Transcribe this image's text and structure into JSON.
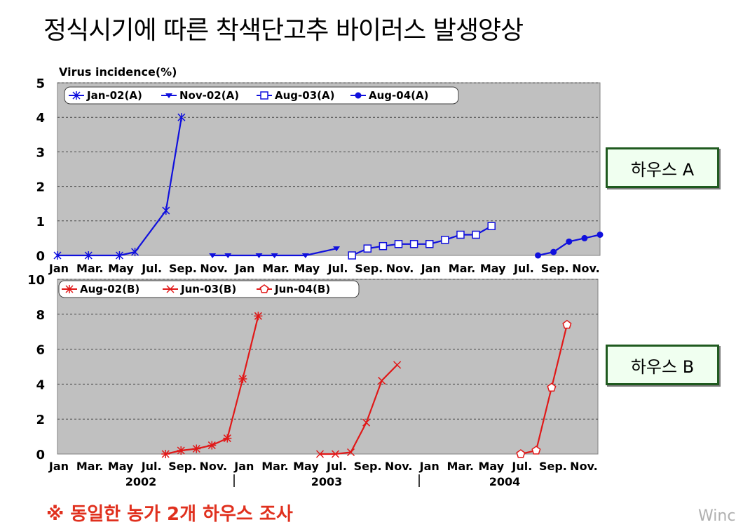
{
  "title": "정식시기에 따른 착색단고추 바이러스 발생양상",
  "house_a_label": "하우스 A",
  "house_b_label": "하우스 B",
  "footnote": "※ 동일한 농가 2개 하우스 조사",
  "watermark": "Winc",
  "colors": {
    "blue": "#1010dd",
    "red": "#e01818",
    "plot_bg": "#c0c0c0",
    "footnote": "#e0301e"
  },
  "chart_data": [
    {
      "type": "line",
      "ylabel": "Virus incidence(%)",
      "ylim": [
        0,
        5
      ],
      "yticks": [
        "0",
        "1",
        "2",
        "3",
        "4",
        "5"
      ],
      "grid": true,
      "legend_position": "top-left",
      "x_tick_labels": [
        "Jan",
        "Mar.",
        "May",
        "Jul.",
        "Sep.",
        "Nov.",
        "Jan",
        "Mar.",
        "May",
        "Jul.",
        "Sep.",
        "Nov.",
        "Jan",
        "Mar.",
        "May",
        "Jul.",
        "Sep.",
        "Nov."
      ],
      "xlim": [
        0,
        35
      ],
      "series": [
        {
          "name": "Jan-02(A)",
          "marker": "asterisk",
          "x": [
            0,
            2,
            4,
            5,
            7,
            8
          ],
          "y": [
            0,
            0,
            0,
            0.1,
            1.3,
            4.0
          ]
        },
        {
          "name": "Nov-02(A)",
          "marker": "triangle-down",
          "x": [
            10,
            11,
            13,
            14,
            16,
            18
          ],
          "y": [
            0,
            0,
            0,
            0,
            0,
            0.2
          ]
        },
        {
          "name": "Aug-03(A)",
          "marker": "square-open",
          "x": [
            19,
            20,
            21,
            22,
            23,
            24,
            25,
            26,
            27,
            28
          ],
          "y": [
            0,
            0.2,
            0.27,
            0.33,
            0.33,
            0.33,
            0.45,
            0.6,
            0.6,
            0.85
          ]
        },
        {
          "name": "Aug-04(A)",
          "marker": "circle",
          "x": [
            31,
            32,
            33,
            34,
            35
          ],
          "y": [
            0,
            0.1,
            0.4,
            0.5,
            0.6
          ]
        }
      ]
    },
    {
      "type": "line",
      "ylim": [
        0,
        10
      ],
      "yticks": [
        "0",
        "2",
        "4",
        "6",
        "8",
        "10"
      ],
      "grid": true,
      "legend_position": "top-left",
      "x_tick_labels": [
        "Jan",
        "Mar.",
        "May",
        "Jul.",
        "Sep.",
        "Nov.",
        "Jan",
        "Mar.",
        "May",
        "Jul.",
        "Sep.",
        "Nov.",
        "Jan",
        "Mar.",
        "May",
        "Jul.",
        "Sep.",
        "Nov."
      ],
      "year_labels": [
        "2002",
        "2003",
        "2004"
      ],
      "xlim": [
        0,
        35
      ],
      "series": [
        {
          "name": "Aug-02(B)",
          "marker": "star-plus",
          "x": [
            7,
            8,
            9,
            10,
            11,
            12,
            13
          ],
          "y": [
            0,
            0.2,
            0.3,
            0.5,
            0.9,
            4.3,
            7.9
          ]
        },
        {
          "name": "Jun-03(B)",
          "marker": "x",
          "x": [
            17,
            18,
            19,
            20,
            21,
            22
          ],
          "y": [
            0,
            0,
            0.1,
            1.8,
            4.2,
            5.1
          ]
        },
        {
          "name": "Jun-04(B)",
          "marker": "pentagon-open",
          "x": [
            30,
            31,
            32,
            33
          ],
          "y": [
            0,
            0.2,
            3.8,
            7.4
          ]
        }
      ]
    }
  ]
}
